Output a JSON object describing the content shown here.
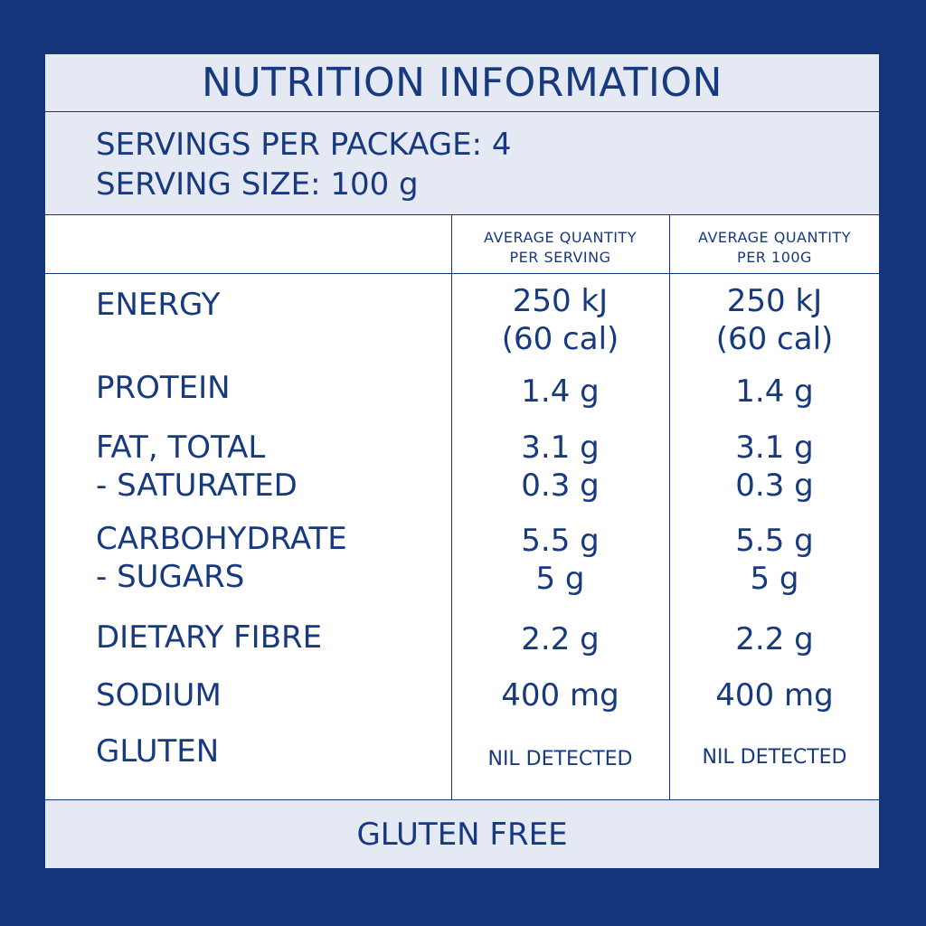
{
  "title": "NUTRITION INFORMATION",
  "servings_per_package": "SERVINGS PER PACKAGE: 4",
  "serving_size": "SERVING SIZE: 100 g",
  "columns": {
    "per_serving": [
      "AVERAGE QUANTITY",
      "PER SERVING"
    ],
    "per_100g": [
      "AVERAGE QUANTITY",
      "PER 100G"
    ]
  },
  "rows": [
    {
      "label": [
        "ENERGY"
      ],
      "per_serving": [
        "250 kJ",
        "(60 cal)"
      ],
      "per_100g": [
        "250 kJ",
        "(60 cal)"
      ]
    },
    {
      "label": [
        "PROTEIN"
      ],
      "per_serving": [
        "1.4 g"
      ],
      "per_100g": [
        "1.4 g"
      ]
    },
    {
      "label": [
        "FAT, TOTAL",
        "- SATURATED"
      ],
      "per_serving": [
        "3.1 g",
        "0.3 g"
      ],
      "per_100g": [
        "3.1 g",
        "0.3 g"
      ]
    },
    {
      "label": [
        "CARBOHYDRATE",
        "- SUGARS"
      ],
      "per_serving": [
        "5.5 g",
        "5 g"
      ],
      "per_100g": [
        "5.5 g",
        "5 g"
      ]
    },
    {
      "label": [
        "DIETARY FIBRE"
      ],
      "per_serving": [
        "2.2 g"
      ],
      "per_100g": [
        "2.2 g"
      ]
    },
    {
      "label": [
        "SODIUM"
      ],
      "per_serving": [
        "400 mg"
      ],
      "per_100g": [
        "400 mg"
      ]
    },
    {
      "label": [
        "GLUTEN"
      ],
      "per_serving": [
        "NIL DETECTED"
      ],
      "per_100g": [
        "NIL DETECTED"
      ]
    }
  ],
  "footer": "GLUTEN FREE",
  "colors": {
    "border": "#14357a",
    "text": "#16397f",
    "band": "#e5e9f3"
  }
}
